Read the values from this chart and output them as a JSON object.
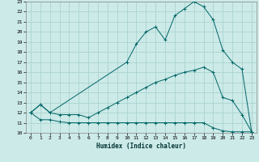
{
  "title": "",
  "xlabel": "Humidex (Indice chaleur)",
  "bg_color": "#cceae8",
  "grid_color": "#aad4d0",
  "line_color": "#006666",
  "xlim": [
    -0.5,
    23.5
  ],
  "ylim": [
    10,
    23
  ],
  "xticks": [
    0,
    1,
    2,
    3,
    4,
    5,
    6,
    7,
    8,
    9,
    10,
    11,
    12,
    13,
    14,
    15,
    16,
    17,
    18,
    19,
    20,
    21,
    22,
    23
  ],
  "yticks": [
    10,
    11,
    12,
    13,
    14,
    15,
    16,
    17,
    18,
    19,
    20,
    21,
    22,
    23
  ],
  "line_min_x": [
    0,
    1,
    2,
    3,
    4,
    5,
    6,
    7,
    8,
    9,
    10,
    11,
    12,
    13,
    14,
    15,
    16,
    17,
    18,
    19,
    20,
    21,
    22,
    23
  ],
  "line_min_y": [
    12.0,
    11.3,
    11.3,
    11.1,
    11.0,
    11.0,
    11.0,
    11.0,
    11.0,
    11.0,
    11.0,
    11.0,
    11.0,
    11.0,
    11.0,
    11.0,
    11.0,
    11.0,
    11.0,
    10.5,
    10.2,
    10.1,
    10.1,
    10.1
  ],
  "line_mean_x": [
    0,
    1,
    2,
    3,
    4,
    5,
    6,
    7,
    8,
    9,
    10,
    11,
    12,
    13,
    14,
    15,
    16,
    17,
    18,
    19,
    20,
    21,
    22,
    23
  ],
  "line_mean_y": [
    12.0,
    12.8,
    12.0,
    11.8,
    11.8,
    11.8,
    11.5,
    12.0,
    12.5,
    13.0,
    13.5,
    14.0,
    14.5,
    15.0,
    15.3,
    15.7,
    16.0,
    16.2,
    16.5,
    16.0,
    13.5,
    13.2,
    11.8,
    10.1
  ],
  "line_max_x": [
    0,
    1,
    2,
    10,
    11,
    12,
    13,
    14,
    15,
    16,
    17,
    18,
    19,
    20,
    21,
    22,
    23
  ],
  "line_max_y": [
    12.0,
    12.8,
    12.0,
    17.0,
    18.8,
    20.0,
    20.5,
    19.2,
    21.6,
    22.3,
    23.0,
    22.5,
    21.2,
    18.2,
    17.0,
    16.3,
    10.1
  ]
}
